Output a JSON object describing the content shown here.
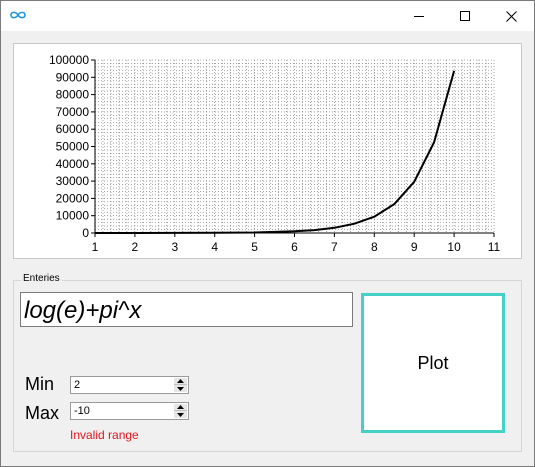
{
  "window": {
    "icon": "infinity-icon",
    "controls": [
      "minimize-icon",
      "maximize-icon",
      "close-icon"
    ]
  },
  "chart_data": {
    "type": "line",
    "x": [
      1,
      2,
      3,
      4,
      5,
      6,
      6.5,
      7,
      7.5,
      8,
      8.5,
      9,
      9.5,
      10
    ],
    "y": [
      3,
      10,
      31,
      98,
      307,
      963,
      1700,
      3015,
      5400,
      9450,
      16700,
      29600,
      52500,
      93700
    ],
    "xlim": [
      1,
      11
    ],
    "ylim": [
      0,
      100000
    ],
    "xticks": [
      1,
      2,
      3,
      4,
      5,
      6,
      7,
      8,
      9,
      10,
      11
    ],
    "yticks": [
      0,
      10000,
      20000,
      30000,
      40000,
      50000,
      60000,
      70000,
      80000,
      90000,
      100000
    ],
    "grid": true
  },
  "entries": {
    "group_label": "Enteries",
    "expression": "log(e)+pi^x",
    "min_label": "Min",
    "min_value": "2",
    "max_label": "Max",
    "max_value": "-10",
    "error_text": "Invalid range",
    "plot_label": "Plot"
  },
  "colors": {
    "accent": "#45d2c6",
    "error": "#e0141e",
    "app_icon": "#1e96e6"
  }
}
